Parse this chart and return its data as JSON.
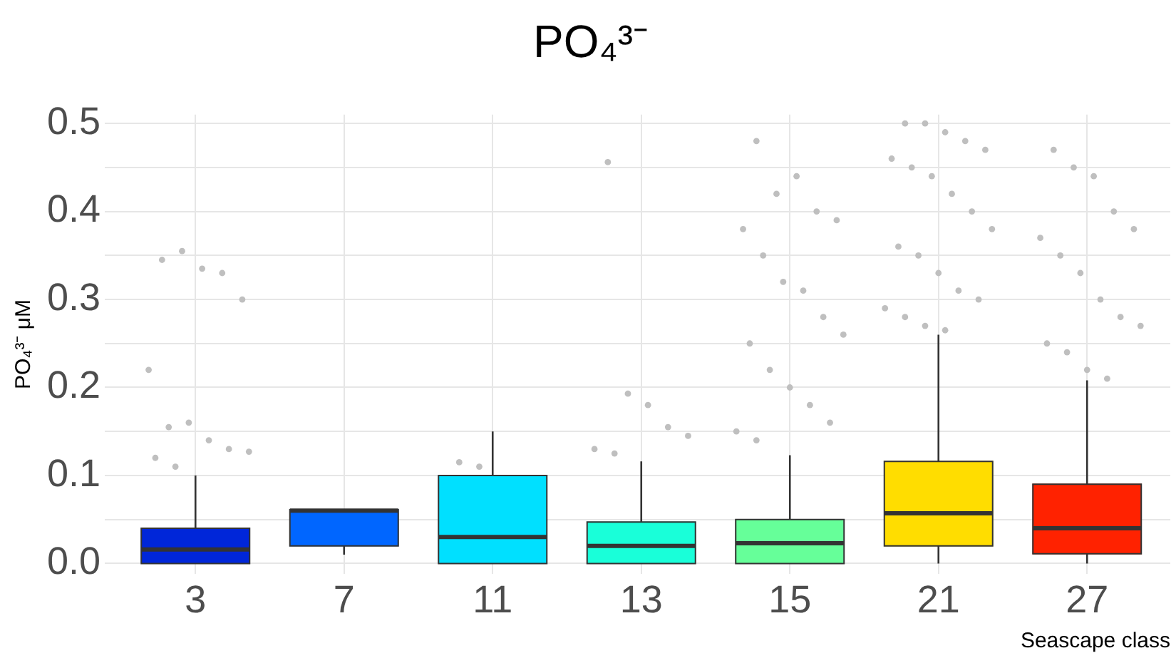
{
  "chart_data": {
    "type": "box",
    "title": "PO₄³⁻",
    "ylabel": "PO₄³⁻ μM",
    "xlabel": "Seascape class",
    "categories": [
      "3",
      "7",
      "11",
      "13",
      "15",
      "21",
      "27"
    ],
    "colors": [
      "#0026d9",
      "#0066ff",
      "#00e0ff",
      "#19ffd9",
      "#66ff99",
      "#ffdd00",
      "#ff2200"
    ],
    "boxes": [
      {
        "low": 0,
        "q1": 0,
        "median": 0.016,
        "q3": 0.04,
        "high": 0.1
      },
      {
        "low": 0.01,
        "q1": 0.02,
        "median": 0.06,
        "q3": 0.061,
        "high": 0.061
      },
      {
        "low": 0,
        "q1": 0,
        "median": 0.03,
        "q3": 0.1,
        "high": 0.15
      },
      {
        "low": 0,
        "q1": 0,
        "median": 0.02,
        "q3": 0.047,
        "high": 0.116
      },
      {
        "low": 0,
        "q1": 0,
        "median": 0.023,
        "q3": 0.05,
        "high": 0.123
      },
      {
        "low": 0,
        "q1": 0.02,
        "median": 0.057,
        "q3": 0.116,
        "high": 0.26
      },
      {
        "low": 0,
        "q1": 0.011,
        "median": 0.04,
        "q3": 0.09,
        "high": 0.208
      }
    ],
    "series": [
      {
        "type": "scatter",
        "color": "#bfbfbf",
        "x": [
          "3",
          "3",
          "3",
          "3",
          "3",
          "3",
          "3",
          "3",
          "3",
          "3",
          "3",
          "3",
          "3",
          "11",
          "11",
          "13",
          "13",
          "13",
          "13",
          "13",
          "13",
          "13",
          "15",
          "15",
          "15",
          "15",
          "15",
          "15",
          "15",
          "15",
          "15",
          "15",
          "15",
          "15",
          "15",
          "15",
          "15",
          "15",
          "15",
          "15",
          "21",
          "21",
          "21",
          "21",
          "21",
          "21",
          "21",
          "21",
          "21",
          "21",
          "21",
          "21",
          "21",
          "21",
          "21",
          "21",
          "21",
          "21",
          "21",
          "21",
          "27",
          "27",
          "27",
          "27",
          "27",
          "27",
          "27",
          "27",
          "27",
          "27",
          "27",
          "27",
          "27",
          "27",
          "27"
        ],
        "values": [
          0.345,
          0.355,
          0.335,
          0.33,
          0.3,
          0.22,
          0.155,
          0.16,
          0.14,
          0.13,
          0.127,
          0.12,
          0.11,
          0.115,
          0.11,
          0.456,
          0.193,
          0.18,
          0.155,
          0.145,
          0.13,
          0.125,
          0.48,
          0.42,
          0.44,
          0.4,
          0.39,
          0.38,
          0.35,
          0.32,
          0.31,
          0.28,
          0.26,
          0.25,
          0.22,
          0.2,
          0.18,
          0.16,
          0.15,
          0.14,
          0.5,
          0.5,
          0.49,
          0.48,
          0.47,
          0.46,
          0.45,
          0.44,
          0.42,
          0.4,
          0.38,
          0.36,
          0.35,
          0.33,
          0.31,
          0.3,
          0.29,
          0.28,
          0.27,
          0.265,
          0.47,
          0.45,
          0.44,
          0.4,
          0.38,
          0.37,
          0.35,
          0.33,
          0.3,
          0.28,
          0.27,
          0.25,
          0.24,
          0.22,
          0.21
        ]
      }
    ],
    "ylim": [
      -0.012,
      0.51
    ],
    "yticks": [
      {
        "value": 0,
        "label": "0.0"
      },
      {
        "value": 0.05,
        "label": null
      },
      0.1,
      {
        "value": 0.15,
        "label": null
      },
      0.2,
      {
        "value": 0.25,
        "label": null
      },
      0.3,
      {
        "value": 0.35,
        "label": null
      },
      0.4,
      {
        "value": 0.45,
        "label": null
      },
      0.5
    ],
    "grid": true,
    "legend": false
  }
}
